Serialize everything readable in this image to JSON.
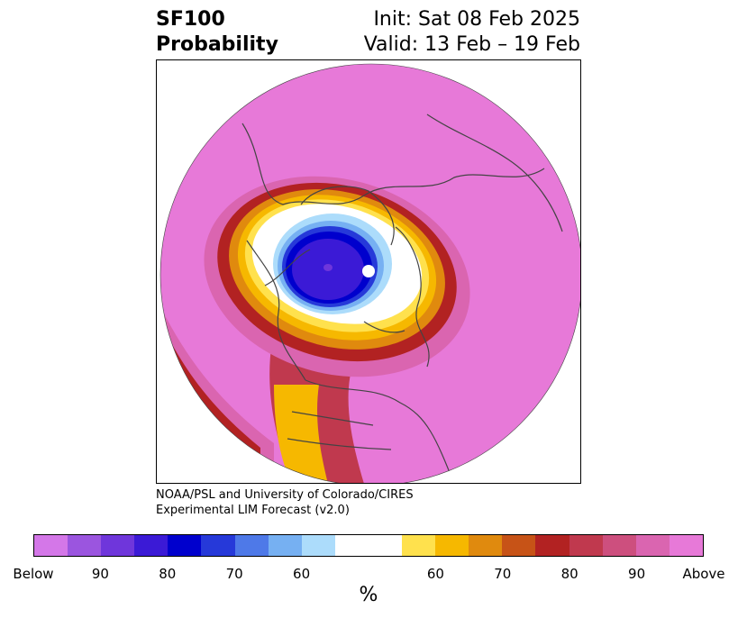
{
  "header": {
    "variable": "SF100",
    "field": "Probability",
    "init": "Init: Sat 08 Feb 2025",
    "valid": "Valid: 13 Feb – 19 Feb"
  },
  "credit": {
    "line1": "NOAA/PSL and University of Colorado/CIRES",
    "line2": "Experimental LIM Forecast (v2.0)"
  },
  "colorbar": {
    "unit": "%",
    "colors": [
      "#d477e8",
      "#9b55df",
      "#6f36db",
      "#3b1ad6",
      "#0000cd",
      "#2639d9",
      "#4e79e8",
      "#76b0f2",
      "#acdcfb",
      "#ffffff",
      "#ffe14d",
      "#f6b800",
      "#e08a0e",
      "#c75317",
      "#b22222",
      "#c0394e",
      "#cd4f7e",
      "#da65b0",
      "#e779d8"
    ],
    "ticks": [
      "Below",
      "90",
      "80",
      "70",
      "60",
      "60",
      "70",
      "80",
      "90",
      "Above"
    ]
  },
  "map": {
    "projection": "north polar stereographic",
    "fill_colors": {
      "background_field": "#e779d8",
      "strong_below": "#3b1ad6",
      "below": "#0000cd",
      "above_edge": "#b22222"
    }
  }
}
